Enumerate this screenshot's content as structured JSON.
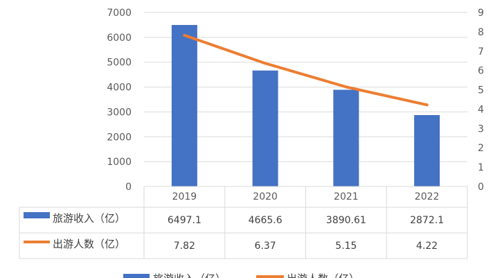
{
  "chart_data": {
    "type": "bar+line",
    "categories": [
      "2019",
      "2020",
      "2021",
      "2022"
    ],
    "series": [
      {
        "name": "旅游收入（亿）",
        "type": "bar",
        "axis": "left",
        "values": [
          6497.1,
          4665.6,
          3890.61,
          2872.1
        ],
        "labels": [
          "6497.1",
          "4665.6",
          "3890.61",
          "2872.1"
        ],
        "color": "#4472c4"
      },
      {
        "name": "出游人数（亿）",
        "type": "line",
        "axis": "right",
        "values": [
          7.82,
          6.37,
          5.15,
          4.22
        ],
        "labels": [
          "7.82",
          "6.37",
          "5.15",
          "4.22"
        ],
        "color": "#ed7d31"
      }
    ],
    "y_left": {
      "min": 0,
      "max": 7000,
      "step": 1000,
      "ticks": [
        "0",
        "1000",
        "2000",
        "3000",
        "4000",
        "5000",
        "6000",
        "7000"
      ]
    },
    "y_right": {
      "min": 0,
      "max": 9,
      "step": 1,
      "ticks": [
        "0",
        "1",
        "2",
        "3",
        "4",
        "5",
        "6",
        "7",
        "8",
        "9"
      ]
    },
    "grid": true,
    "data_table": true,
    "legend": "bottom",
    "legend_labels": [
      "旅游收入（亿）",
      "出游人数（亿）"
    ]
  }
}
